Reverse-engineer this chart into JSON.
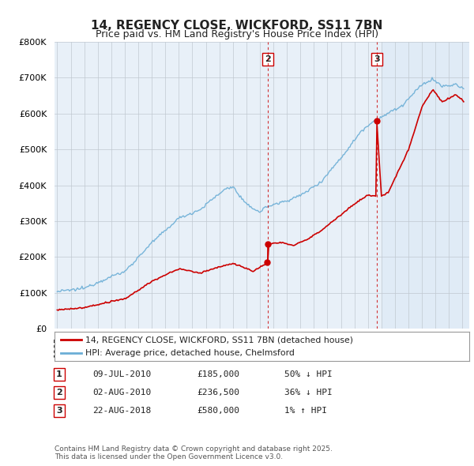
{
  "title1": "14, REGENCY CLOSE, WICKFORD, SS11 7BN",
  "title2": "Price paid vs. HM Land Registry's House Price Index (HPI)",
  "legend1": "14, REGENCY CLOSE, WICKFORD, SS11 7BN (detached house)",
  "legend2": "HPI: Average price, detached house, Chelmsford",
  "transactions": [
    {
      "num": 1,
      "date": "09-JUL-2010",
      "price": 185000,
      "pct": "50%",
      "dir": "↓",
      "year": 2010.52
    },
    {
      "num": 2,
      "date": "02-AUG-2010",
      "price": 236500,
      "pct": "36%",
      "dir": "↓",
      "year": 2010.6
    },
    {
      "num": 3,
      "date": "22-AUG-2018",
      "price": 580000,
      "pct": "1%",
      "dir": "↑",
      "year": 2018.64
    }
  ],
  "footer": "Contains HM Land Registry data © Crown copyright and database right 2025.\nThis data is licensed under the Open Government Licence v3.0.",
  "hpi_color": "#6baed6",
  "price_color": "#cc0000",
  "bg_color": "#e8f0f8",
  "plot_bg": "#e8f0f8",
  "ylim": [
    0,
    800000
  ],
  "yticks": [
    0,
    100000,
    200000,
    300000,
    400000,
    500000,
    600000,
    700000,
    800000
  ],
  "xlim_start": 1994.8,
  "xlim_end": 2025.5,
  "shade_start": 2019.0
}
